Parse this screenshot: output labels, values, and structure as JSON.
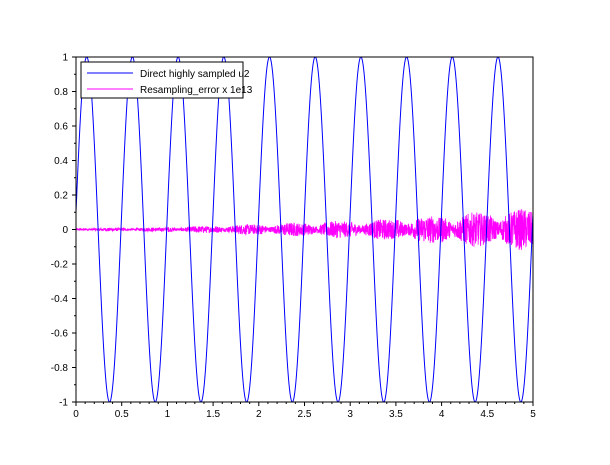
{
  "chart_data": {
    "type": "line",
    "title": "",
    "xlabel": "",
    "ylabel": "",
    "xlim": [
      0,
      5
    ],
    "ylim": [
      -1,
      1
    ],
    "xticks": [
      "0",
      "0.5",
      "1",
      "1.5",
      "2",
      "2.5",
      "3",
      "3.5",
      "4",
      "4.5",
      "5"
    ],
    "yticks": [
      "-1",
      "-0.8",
      "-0.6",
      "-0.4",
      "-0.2",
      "0",
      "0.2",
      "0.4",
      "0.6",
      "0.8",
      "1"
    ],
    "grid": false,
    "legend_position": "top-left",
    "series": [
      {
        "name": "Direct highly sampled u2",
        "color": "#0000ff",
        "model": {
          "shape": "sinusoid",
          "amplitude": 1,
          "frequency": 2,
          "phase": 0.1
        }
      },
      {
        "name": "Resampling_error x 1e13",
        "color": "#ff00ff",
        "model": {
          "shape": "noise",
          "envelope_period": 0.5,
          "envelope_amplitudes": [
            0.01,
            0.012,
            0.02,
            0.03,
            0.04,
            0.05,
            0.06,
            0.08,
            0.1,
            0.12
          ]
        }
      }
    ]
  }
}
